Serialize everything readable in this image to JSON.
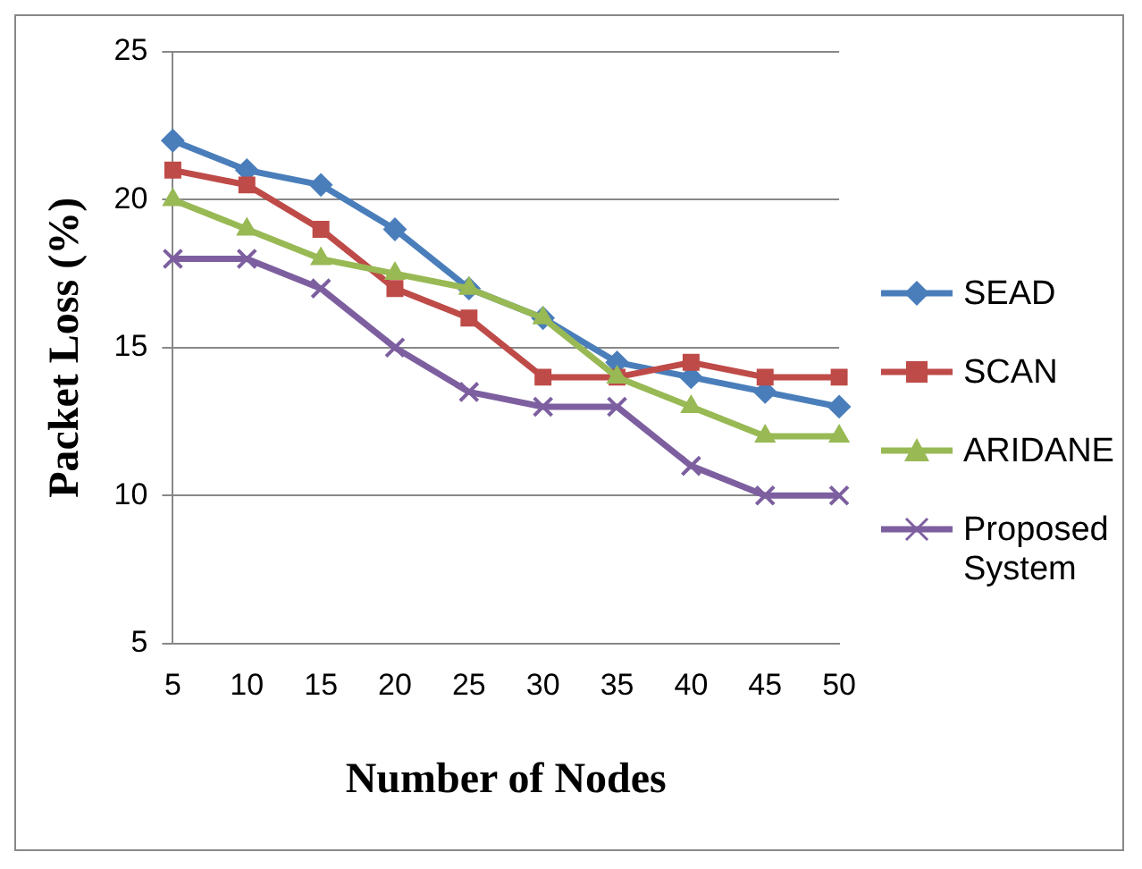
{
  "chart_data": {
    "type": "line",
    "xlabel": "Number of Nodes",
    "ylabel": "Packet Loss (%)",
    "categories": [
      "5",
      "10",
      "15",
      "20",
      "25",
      "30",
      "35",
      "40",
      "45",
      "50"
    ],
    "series": [
      {
        "name": "SEAD",
        "color": "#4a7ebb",
        "marker": "diamond",
        "values": [
          22,
          21,
          20.5,
          19,
          17,
          16,
          14.5,
          14,
          13.5,
          13
        ]
      },
      {
        "name": "SCAN",
        "color": "#be4b48",
        "marker": "square",
        "values": [
          21,
          20.5,
          19,
          17,
          16,
          14,
          14,
          14.5,
          14,
          14
        ]
      },
      {
        "name": "ARIDANE",
        "color": "#98b954",
        "marker": "triangle",
        "values": [
          20,
          19,
          18,
          17.5,
          17,
          16,
          14,
          13,
          12,
          12
        ]
      },
      {
        "name": "Proposed System",
        "color": "#7d5fa0",
        "marker": "cross",
        "values": [
          18,
          18,
          17,
          15,
          13.5,
          13,
          13,
          11,
          10,
          10
        ]
      }
    ],
    "ylim": [
      5,
      25
    ],
    "yticks": [
      5,
      10,
      15,
      20,
      25
    ],
    "grid": "y",
    "legend": "right"
  }
}
